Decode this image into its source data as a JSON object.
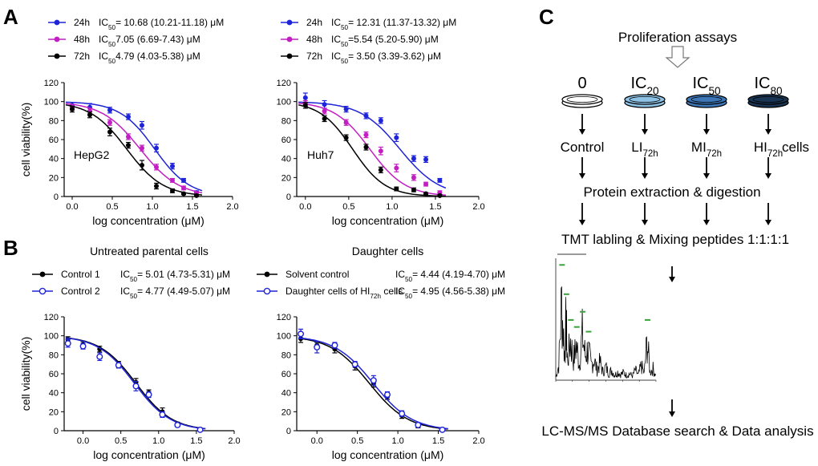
{
  "panel_labels": {
    "A": "A",
    "B": "B",
    "C": "C"
  },
  "unit_label": "(μM)",
  "ic_prefix": "IC",
  "ic_sub": "50",
  "colors": {
    "blue": "#1f24d8",
    "magenta": "#c21fc2",
    "black": "#000000",
    "grey": "#9a9a9a",
    "accent": "#39a23a"
  },
  "chart_data": [
    {
      "id": "hepg2",
      "type": "line",
      "annotation": "HepG2",
      "xlabel": "log concentration (μM)",
      "ylabel": "cell viability(%)",
      "xlim": [
        -0.1,
        2.0
      ],
      "ylim": [
        0,
        120
      ],
      "xticks": [
        "0.0",
        "0.5",
        "1.0",
        "1.5",
        "2.0"
      ],
      "yticks": [
        "0",
        "20",
        "40",
        "60",
        "80",
        "100",
        "120"
      ],
      "legend": [
        {
          "label": "24h",
          "stat": "= 10.68 (10.21-11.18) μM",
          "color": "#1f24d8"
        },
        {
          "label": "48h",
          "stat": "7.05 (6.69-7.43) μM",
          "color": "#c21fc2"
        },
        {
          "label": "72h",
          "stat": "4.79 (4.03-5.38) μM",
          "color": "#000000"
        }
      ],
      "series": [
        {
          "name": "24h",
          "color": "#1f24d8",
          "open": false,
          "logIC50": 1.029,
          "hill": 2.0,
          "x": [
            0,
            0.22,
            0.47,
            0.7,
            0.87,
            1.05,
            1.25,
            1.39,
            1.55
          ],
          "y": [
            96,
            94,
            91,
            84,
            75,
            51,
            32,
            17,
            4
          ],
          "err": [
            3,
            4,
            3,
            3,
            4,
            4,
            3,
            2,
            2
          ]
        },
        {
          "name": "48h",
          "color": "#c21fc2",
          "open": false,
          "logIC50": 0.848,
          "hill": 1.8,
          "x": [
            0,
            0.22,
            0.47,
            0.7,
            0.87,
            1.05,
            1.25,
            1.39,
            1.55
          ],
          "y": [
            94,
            90,
            78,
            63,
            51,
            31,
            17,
            9,
            3
          ],
          "err": [
            3,
            3,
            3,
            3,
            3,
            3,
            2,
            2,
            1
          ]
        },
        {
          "name": "72h",
          "color": "#000000",
          "open": false,
          "logIC50": 0.68,
          "hill": 1.9,
          "x": [
            0,
            0.22,
            0.47,
            0.7,
            0.87,
            1.05,
            1.25,
            1.39,
            1.55
          ],
          "y": [
            92,
            86,
            68,
            54,
            33,
            11,
            6,
            3,
            1
          ],
          "err": [
            3,
            3,
            4,
            3,
            5,
            3,
            2,
            1,
            1
          ]
        }
      ]
    },
    {
      "id": "huh7",
      "type": "line",
      "annotation": "Huh7",
      "xlabel": "log concentration (μM)",
      "ylabel": "",
      "xlim": [
        -0.1,
        2.0
      ],
      "ylim": [
        0,
        120
      ],
      "xticks": [
        "0.0",
        "0.5",
        "1.0",
        "1.5",
        "2.0"
      ],
      "yticks": [
        "0",
        "20",
        "40",
        "60",
        "80",
        "100",
        "120"
      ],
      "legend": [
        {
          "label": "24h",
          "stat": "= 12.31 (11.37-13.32) μM",
          "color": "#1f24d8"
        },
        {
          "label": "48h",
          "stat": "=5.54 (5.20-5.90) μM",
          "color": "#c21fc2"
        },
        {
          "label": "72h",
          "stat": "= 3.50 (3.39-3.62) μM",
          "color": "#000000"
        }
      ],
      "series": [
        {
          "name": "24h",
          "color": "#1f24d8",
          "open": false,
          "logIC50": 1.09,
          "hill": 1.9,
          "x": [
            0,
            0.22,
            0.47,
            0.7,
            0.87,
            1.05,
            1.25,
            1.39,
            1.55
          ],
          "y": [
            104,
            97,
            92,
            85,
            80,
            62,
            40,
            39,
            17
          ],
          "err": [
            5,
            4,
            3,
            3,
            3,
            4,
            3,
            3,
            2
          ]
        },
        {
          "name": "48h",
          "color": "#c21fc2",
          "open": false,
          "logIC50": 0.743,
          "hill": 2.1,
          "x": [
            0,
            0.22,
            0.47,
            0.7,
            0.87,
            1.05,
            1.25,
            1.39,
            1.55
          ],
          "y": [
            98,
            90,
            78,
            65,
            48,
            30,
            20,
            13,
            4
          ],
          "err": [
            3,
            3,
            3,
            3,
            4,
            4,
            3,
            2,
            2
          ]
        },
        {
          "name": "72h",
          "color": "#000000",
          "open": false,
          "logIC50": 0.544,
          "hill": 2.3,
          "x": [
            0,
            0.22,
            0.47,
            0.7,
            0.87,
            1.05,
            1.25,
            1.39,
            1.55
          ],
          "y": [
            96,
            82,
            62,
            52,
            28,
            8,
            7,
            3,
            1
          ],
          "err": [
            3,
            3,
            3,
            3,
            3,
            2,
            2,
            1,
            1
          ]
        }
      ]
    },
    {
      "id": "parental",
      "type": "line",
      "title": "Untreated parental cells",
      "xlabel": "log concentration (μM)",
      "ylabel": "cell viability(%)",
      "xlim": [
        -0.25,
        2.0
      ],
      "ylim": [
        0,
        120
      ],
      "xticks": [
        "0.0",
        "0.5",
        "1.0",
        "1.5",
        "2.0"
      ],
      "yticks": [
        "0",
        "20",
        "40",
        "60",
        "80",
        "100",
        "120"
      ],
      "legend": [
        {
          "label": "Control 1",
          "stat": "= 5.01 (4.73-5.31) μM",
          "color": "#000000",
          "open": false
        },
        {
          "label": "Control 2",
          "stat": "= 4.77 (4.49-5.07) μM",
          "color": "#1f24d8",
          "open": true
        }
      ],
      "series": [
        {
          "name": "Control 1",
          "color": "#000000",
          "open": false,
          "logIC50": 0.7,
          "hill": 1.8,
          "x": [
            -0.2,
            0.0,
            0.22,
            0.47,
            0.7,
            0.87,
            1.05,
            1.25,
            1.55
          ],
          "y": [
            96,
            91,
            86,
            70,
            51,
            40,
            20,
            7,
            1
          ],
          "err": [
            3,
            3,
            3,
            3,
            4,
            3,
            4,
            2,
            1
          ]
        },
        {
          "name": "Control 2",
          "color": "#1f24d8",
          "open": true,
          "logIC50": 0.679,
          "hill": 1.8,
          "x": [
            -0.2,
            0.0,
            0.22,
            0.47,
            0.7,
            0.87,
            1.05,
            1.25,
            1.55
          ],
          "y": [
            92,
            89,
            78,
            69,
            47,
            38,
            17,
            6,
            1
          ],
          "err": [
            4,
            3,
            4,
            3,
            5,
            3,
            3,
            2,
            1
          ]
        }
      ]
    },
    {
      "id": "daughter",
      "type": "line",
      "title": "Daughter cells",
      "xlabel": "log concentration (μM)",
      "ylabel": "",
      "xlim": [
        -0.25,
        2.0
      ],
      "ylim": [
        0,
        120
      ],
      "xticks": [
        "0.0",
        "0.5",
        "1.0",
        "1.5",
        "2.0"
      ],
      "yticks": [
        "0",
        "20",
        "40",
        "60",
        "80",
        "100",
        "120"
      ],
      "legend": [
        {
          "label": "Solvent control",
          "stat": "= 4.44 (4.19-4.70) μM",
          "color": "#000000",
          "open": false
        },
        {
          "label": "Daughter cells of HI",
          "label_sub": "72h",
          "label_tail": " cells",
          "stat": "= 4.95 (4.56-5.38) μM",
          "color": "#1f24d8",
          "open": true
        }
      ],
      "series": [
        {
          "name": "Solvent control",
          "color": "#000000",
          "open": false,
          "logIC50": 0.647,
          "hill": 1.8,
          "x": [
            -0.2,
            0.0,
            0.22,
            0.47,
            0.7,
            0.87,
            1.05,
            1.25,
            1.55
          ],
          "y": [
            97,
            90,
            86,
            68,
            50,
            36,
            16,
            5,
            1
          ],
          "err": [
            4,
            3,
            4,
            4,
            4,
            3,
            3,
            2,
            1
          ]
        },
        {
          "name": "Daughter cells of HI72h cells",
          "color": "#1f24d8",
          "open": true,
          "logIC50": 0.695,
          "hill": 1.8,
          "x": [
            -0.2,
            0.0,
            0.22,
            0.47,
            0.7,
            0.87,
            1.05,
            1.25,
            1.55
          ],
          "y": [
            102,
            88,
            90,
            70,
            53,
            38,
            18,
            6,
            1
          ],
          "err": [
            5,
            6,
            3,
            3,
            5,
            3,
            3,
            2,
            1
          ]
        }
      ]
    },
    {
      "id": "ms-spectrum",
      "type": "line",
      "description_label": "mass spectrum chromatogram",
      "x": [
        0,
        4,
        8,
        12,
        14,
        16,
        20,
        24,
        28,
        32,
        36,
        40,
        44,
        48,
        52,
        56,
        60,
        64,
        68,
        72,
        76,
        80,
        84,
        88,
        92,
        96,
        100,
        104,
        108,
        112,
        116,
        120,
        124,
        128,
        132,
        136
      ],
      "y": [
        4,
        18,
        95,
        30,
        70,
        22,
        48,
        25,
        42,
        20,
        55,
        30,
        38,
        18,
        26,
        12,
        22,
        10,
        16,
        8,
        12,
        6,
        10,
        7,
        9,
        6,
        8,
        5,
        12,
        6,
        18,
        8,
        48,
        10,
        14,
        5
      ]
    }
  ],
  "diagram": {
    "top": "Proliferation assays",
    "doses": [
      "0",
      "IC",
      "IC",
      "IC"
    ],
    "dose_subs": [
      "",
      "20",
      "50",
      "80"
    ],
    "groups": [
      "Control",
      "LI",
      "MI",
      "HI"
    ],
    "group_subs": [
      "",
      "72h",
      "72h",
      "72h"
    ],
    "cells_suffix": "cells",
    "step1": "Protein extraction  &  digestion",
    "step2": "TMT labling & Mixing peptides 1:1:1:1",
    "final": "LC-MS/MS Database search & Data analysis",
    "dish_colors": [
      "#ffffff",
      "#8ec3e6",
      "#3d77b8",
      "#1a3553"
    ]
  }
}
